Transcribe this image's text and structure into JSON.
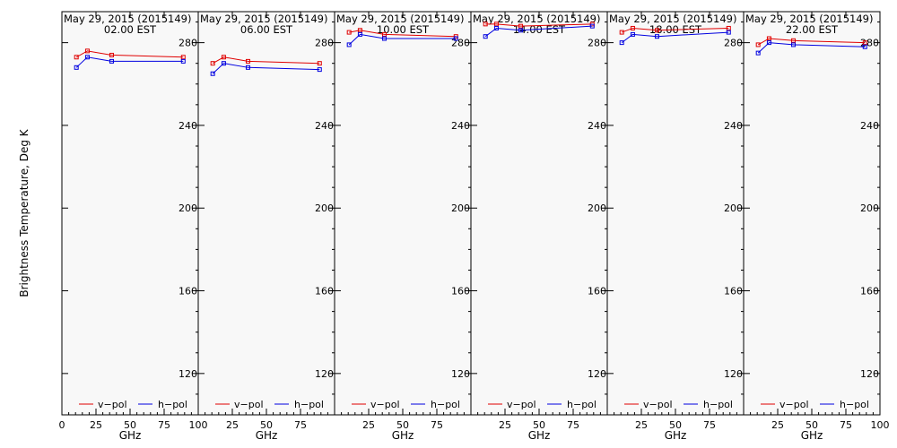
{
  "figure": {
    "ylabel": "Brightness Temperature, Deg K",
    "xlabel": "GHz",
    "background": "#f8f8f8",
    "vpol_color": "#e00000",
    "hpol_color": "#0000e0",
    "legend": {
      "vpol": "v−pol",
      "hpol": "h−pol"
    }
  },
  "chart_data": [
    {
      "type": "line",
      "title": "May 29, 2015 (2015149)",
      "subtitle": "02.00 EST",
      "x": [
        10.65,
        18.7,
        36.5,
        89.0
      ],
      "xlim": [
        0,
        100
      ],
      "xticks": [
        0,
        25,
        50,
        75,
        100
      ],
      "xticklabels": [
        "0",
        "25",
        "50",
        "75",
        "100"
      ],
      "ylim": [
        100,
        295
      ],
      "yticks": [
        120,
        160,
        200,
        240,
        280
      ],
      "series": [
        {
          "name": "v−pol",
          "values": [
            273,
            276,
            274,
            273
          ]
        },
        {
          "name": "h−pol",
          "values": [
            268,
            273,
            271,
            271
          ]
        }
      ]
    },
    {
      "type": "line",
      "title": "May 29, 2015 (2015149)",
      "subtitle": "06.00 EST",
      "x": [
        10.65,
        18.7,
        36.5,
        89.0
      ],
      "xlim": [
        0,
        100
      ],
      "xticks": [
        0,
        25,
        50,
        75,
        100
      ],
      "xticklabels": [
        "",
        "25",
        "50",
        "75",
        ""
      ],
      "ylim": [
        100,
        295
      ],
      "yticks": [
        120,
        160,
        200,
        240,
        280
      ],
      "series": [
        {
          "name": "v−pol",
          "values": [
            270,
            273,
            271,
            270
          ]
        },
        {
          "name": "h−pol",
          "values": [
            265,
            270,
            268,
            267
          ]
        }
      ]
    },
    {
      "type": "line",
      "title": "May 29, 2015 (2015149)",
      "subtitle": "10.00 EST",
      "x": [
        10.65,
        18.7,
        36.5,
        89.0
      ],
      "xlim": [
        0,
        100
      ],
      "xticks": [
        0,
        25,
        50,
        75,
        100
      ],
      "xticklabels": [
        "",
        "25",
        "50",
        "75",
        ""
      ],
      "ylim": [
        100,
        295
      ],
      "yticks": [
        120,
        160,
        200,
        240,
        280
      ],
      "series": [
        {
          "name": "v−pol",
          "values": [
            285,
            286,
            284,
            283
          ]
        },
        {
          "name": "h−pol",
          "values": [
            279,
            284,
            282,
            282
          ]
        }
      ]
    },
    {
      "type": "line",
      "title": "May 29, 2015 (2015149)",
      "subtitle": "14.00 EST",
      "x": [
        10.65,
        18.7,
        36.5,
        89.0
      ],
      "xlim": [
        0,
        100
      ],
      "xticks": [
        0,
        25,
        50,
        75,
        100
      ],
      "xticklabels": [
        "",
        "25",
        "50",
        "75",
        ""
      ],
      "ylim": [
        100,
        295
      ],
      "yticks": [
        120,
        160,
        200,
        240,
        280
      ],
      "series": [
        {
          "name": "v−pol",
          "values": [
            289,
            289,
            288,
            289
          ]
        },
        {
          "name": "h−pol",
          "values": [
            283,
            287,
            286,
            288
          ]
        }
      ]
    },
    {
      "type": "line",
      "title": "May 29, 2015 (2015149)",
      "subtitle": "18.00 EST",
      "x": [
        10.65,
        18.7,
        36.5,
        89.0
      ],
      "xlim": [
        0,
        100
      ],
      "xticks": [
        0,
        25,
        50,
        75,
        100
      ],
      "xticklabels": [
        "",
        "25",
        "50",
        "75",
        ""
      ],
      "ylim": [
        100,
        295
      ],
      "yticks": [
        120,
        160,
        200,
        240,
        280
      ],
      "series": [
        {
          "name": "v−pol",
          "values": [
            285,
            287,
            286,
            287
          ]
        },
        {
          "name": "h−pol",
          "values": [
            280,
            284,
            283,
            285
          ]
        }
      ]
    },
    {
      "type": "line",
      "title": "May 29, 2015 (2015149)",
      "subtitle": "22.00 EST",
      "x": [
        10.65,
        18.7,
        36.5,
        89.0
      ],
      "xlim": [
        0,
        100
      ],
      "xticks": [
        0,
        25,
        50,
        75,
        100
      ],
      "xticklabels": [
        "",
        "25",
        "50",
        "75",
        "100"
      ],
      "ylim": [
        100,
        295
      ],
      "yticks": [
        120,
        160,
        200,
        240,
        280
      ],
      "series": [
        {
          "name": "v−pol",
          "values": [
            279,
            282,
            281,
            280
          ]
        },
        {
          "name": "h−pol",
          "values": [
            275,
            280,
            279,
            278
          ]
        }
      ]
    }
  ]
}
